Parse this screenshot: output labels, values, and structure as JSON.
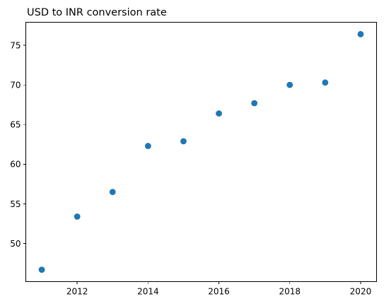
{
  "chart_data": {
    "type": "scatter",
    "title": "USD to INR conversion rate",
    "xlabel": "",
    "ylabel": "",
    "x": [
      2011,
      2012,
      2013,
      2014,
      2015,
      2016,
      2017,
      2018,
      2019,
      2020
    ],
    "y": [
      46.7,
      53.4,
      56.5,
      62.3,
      62.9,
      66.4,
      67.7,
      70.0,
      70.3,
      76.4
    ],
    "xlim": [
      2010.55,
      2020.45
    ],
    "ylim": [
      45.2,
      77.9
    ],
    "xticks": [
      2012,
      2014,
      2016,
      2018,
      2020
    ],
    "yticks": [
      50,
      55,
      60,
      65,
      70,
      75
    ],
    "grid": false,
    "legend": "none",
    "point_color": "#1f77b4"
  }
}
